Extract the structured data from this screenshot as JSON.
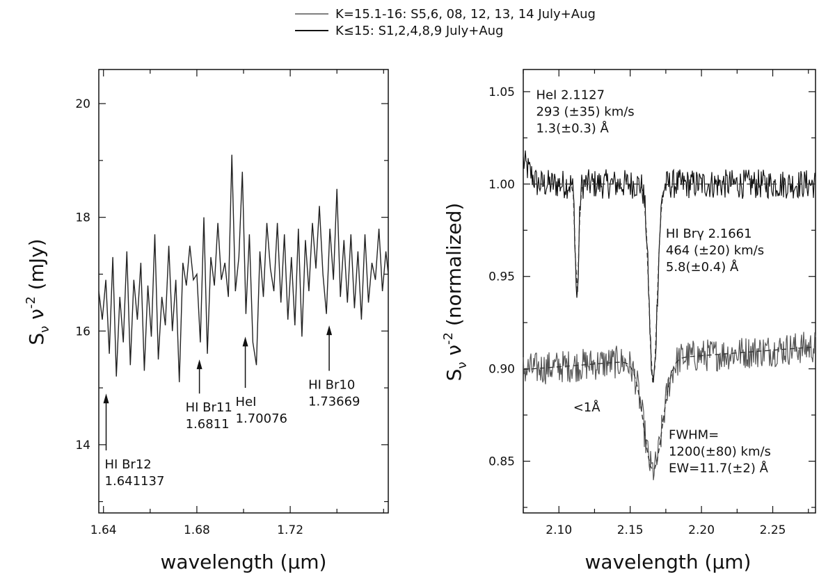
{
  "legend": {
    "entries": [
      {
        "label": "K=15.1-16: S5,6, 08, 12, 13, 14  July+Aug",
        "color": "#555555"
      },
      {
        "label": "K≤15: S1,2,4,8,9 July+Aug",
        "color": "#111111"
      }
    ],
    "placement": "top-center"
  },
  "chart_data": [
    {
      "type": "line",
      "xlabel": "wavelength (μm)",
      "ylabel_main": "S",
      "ylabel_sub": "ν",
      "ylabel_mid": " ν",
      "ylabel_sup": "-2",
      "ylabel_unit": " (mJy)",
      "xlim": [
        1.638,
        1.762
      ],
      "ylim": [
        12.8,
        20.6
      ],
      "xticks": [
        1.64,
        1.68,
        1.72
      ],
      "xtick_labels": [
        "1.64",
        "1.68",
        "1.72"
      ],
      "yticks": [
        14,
        16,
        18,
        20
      ],
      "ytick_labels": [
        "14",
        "16",
        "18",
        "20"
      ],
      "grid": false,
      "series": [
        {
          "color": "#222222",
          "x": [
            1.638,
            1.6395,
            1.641,
            1.6425,
            1.644,
            1.6455,
            1.647,
            1.6485,
            1.65,
            1.6515,
            1.653,
            1.6545,
            1.656,
            1.6575,
            1.659,
            1.6605,
            1.662,
            1.6635,
            1.665,
            1.6665,
            1.668,
            1.6695,
            1.671,
            1.6725,
            1.674,
            1.6755,
            1.677,
            1.6785,
            1.68,
            1.6815,
            1.683,
            1.6845,
            1.686,
            1.6875,
            1.689,
            1.6905,
            1.692,
            1.6935,
            1.695,
            1.6965,
            1.698,
            1.6995,
            1.701,
            1.7025,
            1.704,
            1.7055,
            1.707,
            1.7085,
            1.71,
            1.7115,
            1.713,
            1.7145,
            1.716,
            1.7175,
            1.719,
            1.7205,
            1.722,
            1.7235,
            1.725,
            1.7265,
            1.728,
            1.7295,
            1.731,
            1.7325,
            1.734,
            1.7355,
            1.737,
            1.7385,
            1.74,
            1.7415,
            1.743,
            1.7445,
            1.746,
            1.7475,
            1.749,
            1.7505,
            1.752,
            1.7535,
            1.755,
            1.7565,
            1.758,
            1.7595,
            1.761,
            1.762
          ],
          "y": [
            16.7,
            16.2,
            16.9,
            15.6,
            17.3,
            15.2,
            16.6,
            15.8,
            17.4,
            15.4,
            16.9,
            16.2,
            17.2,
            15.3,
            16.8,
            15.9,
            17.7,
            15.5,
            16.6,
            16.1,
            17.5,
            16.0,
            16.9,
            15.1,
            17.2,
            16.8,
            17.5,
            16.9,
            17.0,
            15.8,
            18.0,
            15.6,
            17.3,
            16.8,
            17.9,
            16.9,
            17.2,
            16.6,
            19.1,
            16.7,
            17.3,
            18.8,
            16.3,
            17.7,
            15.8,
            15.4,
            17.4,
            16.6,
            17.9,
            17.1,
            16.7,
            17.9,
            16.5,
            17.7,
            16.2,
            17.3,
            16.1,
            17.8,
            15.9,
            17.6,
            16.7,
            17.9,
            17.1,
            18.2,
            17.0,
            16.3,
            17.8,
            16.9,
            18.5,
            16.6,
            17.6,
            16.5,
            17.7,
            16.4,
            17.4,
            16.2,
            17.7,
            16.5,
            17.2,
            16.9,
            17.8,
            16.7,
            17.4,
            17.0
          ]
        }
      ],
      "annotations": [
        {
          "text": [
            "HI Br12",
            "1.641137"
          ],
          "x": 1.641137,
          "y_from": 13.9,
          "y_to": 14.9
        },
        {
          "text": [
            "HI Br11",
            "1.6811"
          ],
          "x": 1.6811,
          "y_from": 14.9,
          "y_to": 15.5
        },
        {
          "text": [
            "HeI",
            "1.70076"
          ],
          "x": 1.70076,
          "y_from": 15.0,
          "y_to": 15.9
        },
        {
          "text": [
            "HI Br10",
            "1.73669"
          ],
          "x": 1.73669,
          "y_from": 15.3,
          "y_to": 16.1
        }
      ]
    },
    {
      "type": "line",
      "xlabel": "wavelength (μm)",
      "ylabel_main": "S",
      "ylabel_sub": "ν",
      "ylabel_mid": " ν",
      "ylabel_sup": "-2",
      "ylabel_unit": " (normalized)",
      "xlim": [
        2.075,
        2.28
      ],
      "ylim": [
        0.822,
        1.062
      ],
      "xticks": [
        2.1,
        2.15,
        2.2,
        2.25
      ],
      "xtick_labels": [
        "2.10",
        "2.15",
        "2.20",
        "2.25"
      ],
      "yticks": [
        0.85,
        0.9,
        0.95,
        1.0,
        1.05
      ],
      "ytick_labels": [
        "0.85",
        "0.90",
        "0.95",
        "1.00",
        "1.05"
      ],
      "grid": false,
      "series": [
        {
          "color": "#111111",
          "continuum": 1.0,
          "lines": [
            {
              "center": 2.1127,
              "depth": 0.062,
              "width": 0.0012
            },
            {
              "center": 2.1661,
              "depth": 0.108,
              "width": 0.0028
            }
          ],
          "noise": 0.008,
          "fit_color": "#333333"
        },
        {
          "color": "#555555",
          "continuum": 0.905,
          "lines": [
            {
              "center": 2.1661,
              "depth": 0.06,
              "width": 0.0065
            }
          ],
          "noise": 0.009,
          "fit_color": "#333333"
        }
      ],
      "annotations": [
        {
          "text": [
            "HeI 2.1127",
            "293 (±35) km/s",
            "1.3(±0.3) Å"
          ],
          "x": 2.084,
          "y": 1.046
        },
        {
          "text": [
            "HI Brγ 2.1661",
            "464 (±20) km/s",
            "5.8(±0.4) Å"
          ],
          "x": 2.175,
          "y": 0.971
        },
        {
          "text": [
            "<1Å"
          ],
          "x": 2.11,
          "y": 0.877
        },
        {
          "text": [
            "FWHM=",
            "1200(±80) km/s",
            "EW=11.7(±2) Å"
          ],
          "x": 2.177,
          "y": 0.862
        }
      ]
    }
  ]
}
